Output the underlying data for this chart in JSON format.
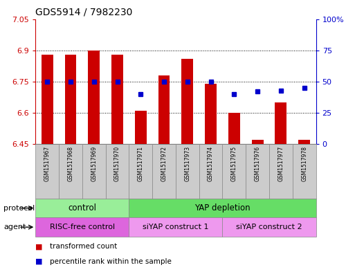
{
  "title": "GDS5914 / 7982230",
  "samples": [
    "GSM1517967",
    "GSM1517968",
    "GSM1517969",
    "GSM1517970",
    "GSM1517971",
    "GSM1517972",
    "GSM1517973",
    "GSM1517974",
    "GSM1517975",
    "GSM1517976",
    "GSM1517977",
    "GSM1517978"
  ],
  "red_values": [
    6.88,
    6.88,
    6.9,
    6.88,
    6.61,
    6.78,
    6.86,
    6.74,
    6.6,
    6.47,
    6.65,
    6.47
  ],
  "blue_values": [
    50,
    50,
    50,
    50,
    40,
    50,
    50,
    50,
    40,
    42,
    43,
    45
  ],
  "ylim_left": [
    6.45,
    7.05
  ],
  "ylim_right": [
    0,
    100
  ],
  "yticks_left": [
    6.45,
    6.6,
    6.75,
    6.9,
    7.05
  ],
  "yticks_right": [
    0,
    25,
    50,
    75,
    100
  ],
  "ytick_labels_right": [
    "0",
    "25",
    "50",
    "75",
    "100%"
  ],
  "bar_color": "#cc0000",
  "dot_color": "#0000cc",
  "bar_bottom": 6.45,
  "protocol_groups": [
    {
      "label": "control",
      "start": 0,
      "end": 4,
      "color": "#99ee99"
    },
    {
      "label": "YAP depletion",
      "start": 4,
      "end": 12,
      "color": "#66dd66"
    }
  ],
  "agent_groups": [
    {
      "label": "RISC-free control",
      "start": 0,
      "end": 4,
      "color": "#dd66dd"
    },
    {
      "label": "siYAP construct 1",
      "start": 4,
      "end": 8,
      "color": "#ee99ee"
    },
    {
      "label": "siYAP construct 2",
      "start": 8,
      "end": 12,
      "color": "#ee99ee"
    }
  ],
  "protocol_label": "protocol",
  "agent_label": "agent",
  "legend_red": "transformed count",
  "legend_blue": "percentile rank within the sample",
  "bg_color": "#ffffff",
  "tick_color_left": "#cc0000",
  "tick_color_right": "#0000cc",
  "grid_color": "#000000",
  "sample_box_color": "#cccccc"
}
